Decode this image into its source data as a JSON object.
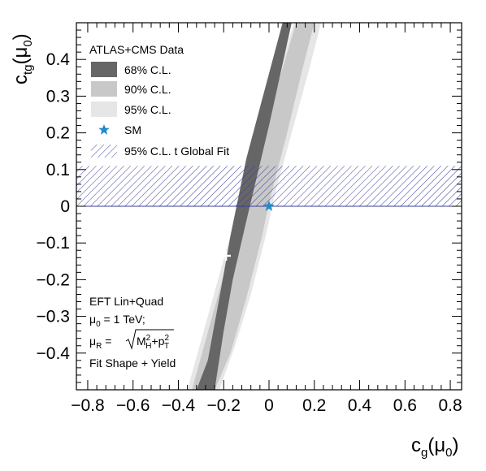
{
  "chart_data": {
    "type": "contour",
    "xlabel": {
      "main": "c",
      "sub": "g",
      "arg": "(μ",
      "argsub": "0",
      "close": ")"
    },
    "ylabel": {
      "main": "c",
      "sub": "tg",
      "arg": "(μ",
      "argsub": "0",
      "close": ")"
    },
    "xlim": [
      -0.85,
      0.85
    ],
    "ylim": [
      -0.5,
      0.5
    ],
    "xticks": [
      -0.8,
      -0.6,
      -0.4,
      -0.2,
      0,
      0.2,
      0.4,
      0.6,
      0.8
    ],
    "xtick_labels": [
      "−0.8",
      "−0.6",
      "−0.4",
      "−0.2",
      "0",
      "0.2",
      "0.4",
      "0.6",
      "0.8"
    ],
    "yticks": [
      -0.4,
      -0.3,
      -0.2,
      -0.1,
      0,
      0.1,
      0.2,
      0.3,
      0.4
    ],
    "ytick_labels": [
      "−0.4",
      "−0.3",
      "−0.2",
      "−0.1",
      "0",
      "0.1",
      "0.2",
      "0.3",
      "0.4"
    ],
    "legend": {
      "title": "ATLAS+CMS Data",
      "position": "top-left",
      "entries": [
        {
          "label": "68% C.L.",
          "color": "#666666",
          "kind": "fill"
        },
        {
          "label": "90% C.L.",
          "color": "#c8c8c8",
          "kind": "fill"
        },
        {
          "label": "95% C.L.",
          "color": "#e6e6e6",
          "kind": "fill"
        },
        {
          "label": "SM",
          "color": "#1f8bc9",
          "kind": "star"
        },
        {
          "label": "95% C.L. t Global Fit",
          "color": "#3a3c9a",
          "kind": "hatch"
        }
      ]
    },
    "global_fit_band": {
      "ctg_min": 0.0,
      "ctg_max": 0.11
    },
    "sm_point": {
      "cg": 0.0,
      "ctg": 0.0
    },
    "best_fit": {
      "cg": -0.19,
      "ctg": -0.135
    },
    "regions": {
      "c95": [
        [
          -0.36,
          -0.5
        ],
        [
          -0.18,
          -0.1
        ],
        [
          -0.06,
          0.16
        ],
        [
          0.11,
          0.5
        ],
        [
          0.23,
          0.5
        ],
        [
          0.18,
          0.38
        ],
        [
          0.1,
          0.2
        ],
        [
          0.02,
          0.02
        ],
        [
          -0.01,
          -0.07
        ],
        [
          -0.08,
          -0.24
        ],
        [
          -0.15,
          -0.38
        ],
        [
          -0.22,
          -0.5
        ]
      ],
      "c90": [
        [
          -0.34,
          -0.5
        ],
        [
          -0.17,
          -0.12
        ],
        [
          -0.05,
          0.15
        ],
        [
          0.12,
          0.5
        ],
        [
          0.2,
          0.5
        ],
        [
          0.15,
          0.38
        ],
        [
          0.08,
          0.2
        ],
        [
          0.0,
          0.01
        ],
        [
          -0.03,
          -0.08
        ],
        [
          -0.1,
          -0.25
        ],
        [
          -0.17,
          -0.4
        ],
        [
          -0.24,
          -0.5
        ]
      ],
      "c68": [
        [
          -0.32,
          -0.5
        ],
        [
          -0.27,
          -0.42
        ],
        [
          -0.21,
          -0.22
        ],
        [
          -0.17,
          -0.08
        ],
        [
          -0.1,
          0.13
        ],
        [
          0.06,
          0.5
        ],
        [
          0.1,
          0.5
        ],
        [
          0.0,
          0.22
        ],
        [
          -0.1,
          -0.04
        ],
        [
          -0.16,
          -0.2
        ],
        [
          -0.2,
          -0.34
        ],
        [
          -0.24,
          -0.5
        ]
      ]
    },
    "annotations": [
      {
        "text": "EFT Lin+Quad"
      },
      {
        "text": "μ",
        "sub": "0",
        "rest": " = 1 TeV;"
      },
      {
        "text": "μ",
        "sub": "R",
        "rest": " = ",
        "sqrt_main": "M",
        "sqrt_sup1": "2",
        "sqrt_sub1": "H",
        "sqrt_plus": "+p",
        "sqrt_sup2": "2",
        "sqrt_sub2": "T"
      },
      {
        "text": "Fit Shape + Yield"
      }
    ]
  }
}
